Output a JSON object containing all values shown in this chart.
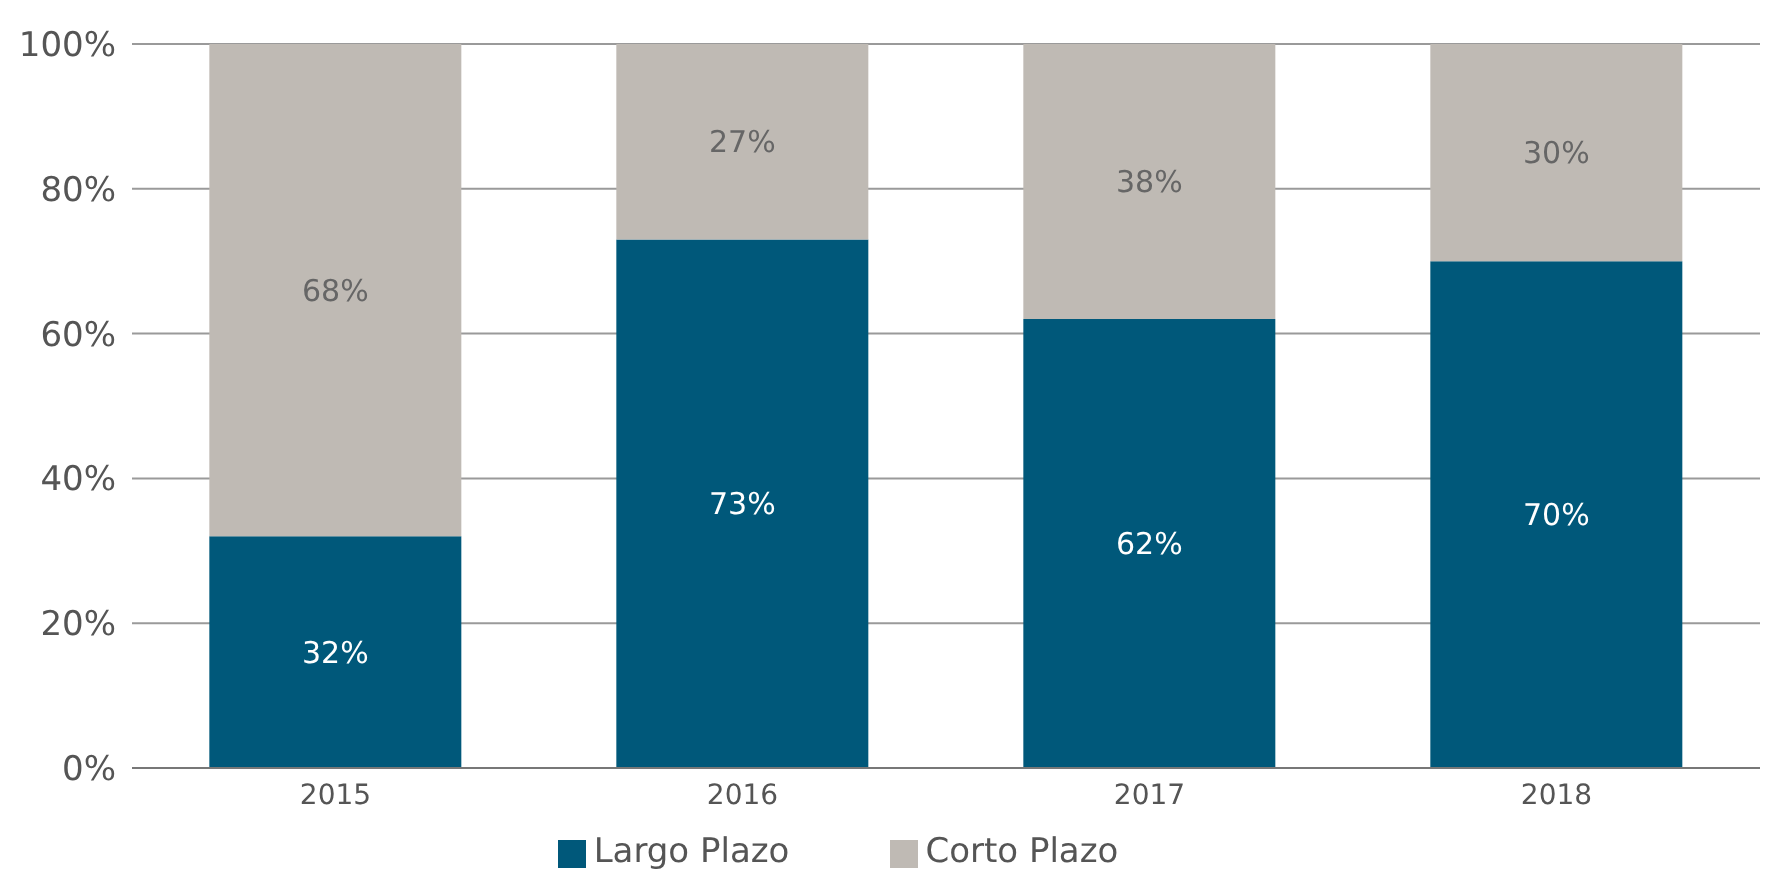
{
  "chart_data": {
    "type": "bar",
    "stacked": true,
    "categories": [
      "2015",
      "2016",
      "2017",
      "2018"
    ],
    "series": [
      {
        "name": "Largo Plazo",
        "color": "#00587a",
        "values": [
          32,
          73,
          62,
          70
        ],
        "value_labels": [
          "32%",
          "73%",
          "62%",
          "70%"
        ]
      },
      {
        "name": "Corto Plazo",
        "color": "#bfbab4",
        "values": [
          68,
          27,
          38,
          30
        ],
        "value_labels": [
          "68%",
          "27%",
          "38%",
          "30%"
        ]
      }
    ],
    "ylim": [
      0,
      100
    ],
    "yticks": [
      {
        "value": 0,
        "label": "0%"
      },
      {
        "value": 20,
        "label": "20%"
      },
      {
        "value": 40,
        "label": "40%"
      },
      {
        "value": 60,
        "label": "60%"
      },
      {
        "value": 80,
        "label": "80%"
      },
      {
        "value": 100,
        "label": "100%"
      }
    ],
    "grid": "y",
    "legend": "bottom"
  }
}
